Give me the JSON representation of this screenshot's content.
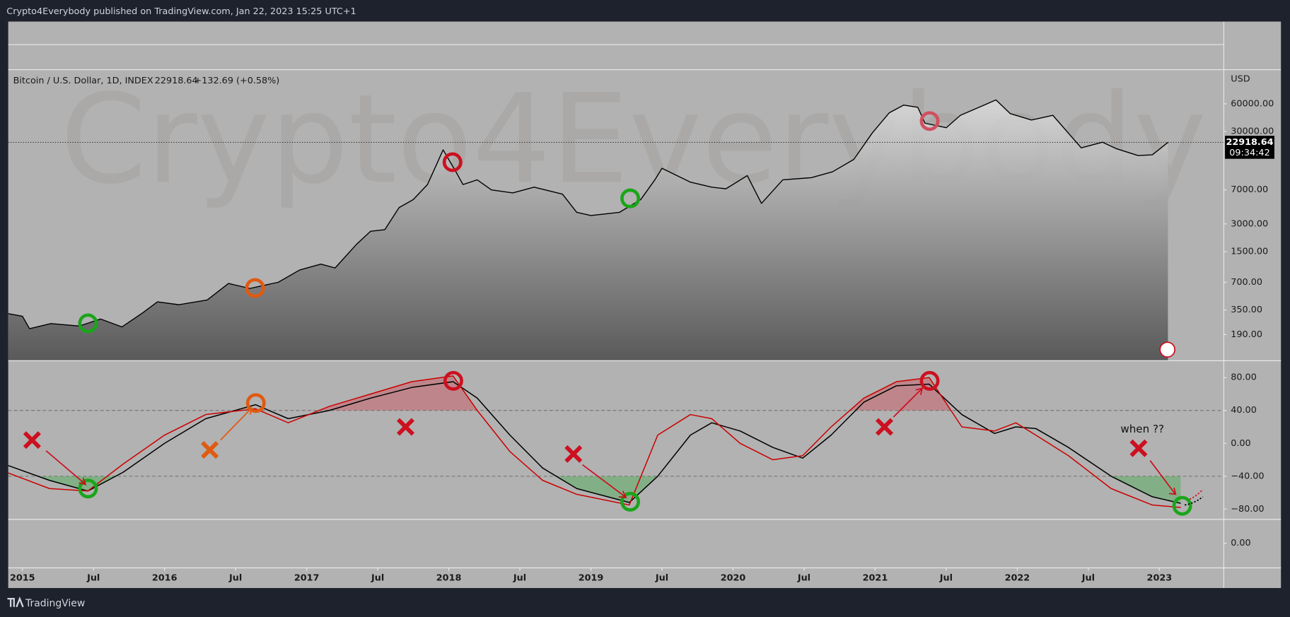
{
  "header": {
    "title": "Crypto4Everybody published on TradingView.com, Jan 22, 2023 15:25 UTC+1",
    "watermark": "Crypto4Everybody",
    "footer": "TradingView"
  },
  "chart_data": [
    {
      "type": "line",
      "title": "Bitcoin / U.S. Dollar, 1D, INDEX",
      "last_value": 22918.64,
      "change_label": "+132.69 (+0.58%)",
      "countdown": "09:34:42",
      "currency": "USD",
      "log_scale": true,
      "xlim": [
        2014.9,
        2023.45
      ],
      "ylim": [
        100,
        139000
      ],
      "xticks": [
        {
          "value": 2015,
          "label": "2015"
        },
        {
          "value": 2015.5,
          "label": "Jul"
        },
        {
          "value": 2016,
          "label": "2016"
        },
        {
          "value": 2016.5,
          "label": "Jul"
        },
        {
          "value": 2017,
          "label": "2017"
        },
        {
          "value": 2017.5,
          "label": "Jul"
        },
        {
          "value": 2018,
          "label": "2018"
        },
        {
          "value": 2018.5,
          "label": "Jul"
        },
        {
          "value": 2019,
          "label": "2019"
        },
        {
          "value": 2019.5,
          "label": "Jul"
        },
        {
          "value": 2020,
          "label": "2020"
        },
        {
          "value": 2020.5,
          "label": "Jul"
        },
        {
          "value": 2021,
          "label": "2021"
        },
        {
          "value": 2021.5,
          "label": "Jul"
        },
        {
          "value": 2022,
          "label": "2022"
        },
        {
          "value": 2022.5,
          "label": "Jul"
        },
        {
          "value": 2023,
          "label": "2023"
        }
      ],
      "yticks": [
        {
          "value": 190,
          "label": "190.00"
        },
        {
          "value": 350,
          "label": "350.00"
        },
        {
          "value": 700,
          "label": "700.00"
        },
        {
          "value": 1500,
          "label": "1500.00"
        },
        {
          "value": 3000,
          "label": "3000.00"
        },
        {
          "value": 7000,
          "label": "7000.00"
        },
        {
          "value": 30000,
          "label": "30000.00"
        },
        {
          "value": 60000,
          "label": "60000.00"
        }
      ],
      "x": [
        2014.9,
        2015.0,
        2015.05,
        2015.2,
        2015.4,
        2015.55,
        2015.7,
        2015.85,
        2015.95,
        2016.1,
        2016.3,
        2016.45,
        2016.6,
        2016.8,
        2016.95,
        2017.1,
        2017.2,
        2017.35,
        2017.45,
        2017.55,
        2017.65,
        2017.75,
        2017.85,
        2017.96,
        2018.05,
        2018.1,
        2018.2,
        2018.3,
        2018.45,
        2018.6,
        2018.8,
        2018.9,
        2019.0,
        2019.2,
        2019.35,
        2019.45,
        2019.5,
        2019.7,
        2019.85,
        2019.95,
        2020.1,
        2020.2,
        2020.35,
        2020.55,
        2020.7,
        2020.85,
        2020.98,
        2021.1,
        2021.2,
        2021.3,
        2021.35,
        2021.5,
        2021.6,
        2021.85,
        2021.95,
        2022.1,
        2022.25,
        2022.35,
        2022.45,
        2022.6,
        2022.7,
        2022.85,
        2022.95,
        2023.06
      ],
      "series": [
        {
          "name": "Bitcoin / U.S. Dollar, 1D, INDEX",
          "color": "#000000",
          "values": [
            320,
            300,
            220,
            250,
            235,
            280,
            230,
            330,
            430,
            400,
            450,
            680,
            600,
            700,
            950,
            1100,
            1000,
            1800,
            2500,
            2600,
            4500,
            5500,
            8000,
            19000,
            11000,
            8000,
            9000,
            7000,
            6500,
            7500,
            6300,
            4000,
            3700,
            4000,
            5500,
            9000,
            12000,
            8500,
            7500,
            7200,
            10000,
            5000,
            9000,
            9500,
            11000,
            15000,
            29000,
            48000,
            58000,
            55000,
            37000,
            33000,
            45000,
            66000,
            47000,
            40000,
            45000,
            30000,
            20000,
            23000,
            19500,
            16500,
            16800,
            22918.64
          ]
        }
      ]
    },
    {
      "type": "line",
      "xlim": [
        2014.9,
        2023.45
      ],
      "ylim": [
        -92,
        101
      ],
      "levels": [
        40,
        -40
      ],
      "yticks": [
        {
          "value": 80,
          "label": "80.00"
        },
        {
          "value": 40,
          "label": "40.00"
        },
        {
          "value": 0,
          "label": "0.00"
        },
        {
          "value": -40,
          "label": "−40.00"
        },
        {
          "value": -80,
          "label": "−80.00"
        }
      ],
      "annotations": [
        "when ??"
      ],
      "x": [
        2014.9,
        2015.19,
        2015.46,
        2015.71,
        2016.0,
        2016.29,
        2016.64,
        2016.87,
        2017.16,
        2017.45,
        2017.74,
        2018.03,
        2018.2,
        2018.43,
        2018.66,
        2018.9,
        2019.27,
        2019.47,
        2019.7,
        2019.85,
        2020.05,
        2020.28,
        2020.49,
        2020.69,
        2020.92,
        2021.15,
        2021.38,
        2021.61,
        2021.84,
        2021.99,
        2022.13,
        2022.36,
        2022.66,
        2022.95,
        2023.15
      ],
      "series": [
        {
          "color": "#000000",
          "values": [
            -27,
            -45,
            -58,
            -35,
            0,
            30,
            47,
            30,
            40,
            55,
            68,
            75,
            55,
            10,
            -30,
            -55,
            -72,
            -40,
            10,
            25,
            15,
            -5,
            -18,
            10,
            50,
            70,
            72,
            35,
            12,
            20,
            18,
            -5,
            -40,
            -65,
            -73
          ]
        },
        {
          "color": "#cc0000",
          "values": [
            -36,
            -55,
            -58,
            -25,
            10,
            35,
            42,
            25,
            45,
            60,
            75,
            82,
            40,
            -10,
            -45,
            -62,
            -75,
            10,
            35,
            30,
            0,
            -20,
            -15,
            20,
            55,
            75,
            80,
            20,
            15,
            25,
            10,
            -15,
            -55,
            -75,
            -78
          ]
        }
      ]
    },
    {
      "type": "line",
      "ylim": [
        -29.5,
        29.5
      ],
      "yticks": [
        {
          "value": 0,
          "label": "0.00"
        }
      ]
    }
  ]
}
